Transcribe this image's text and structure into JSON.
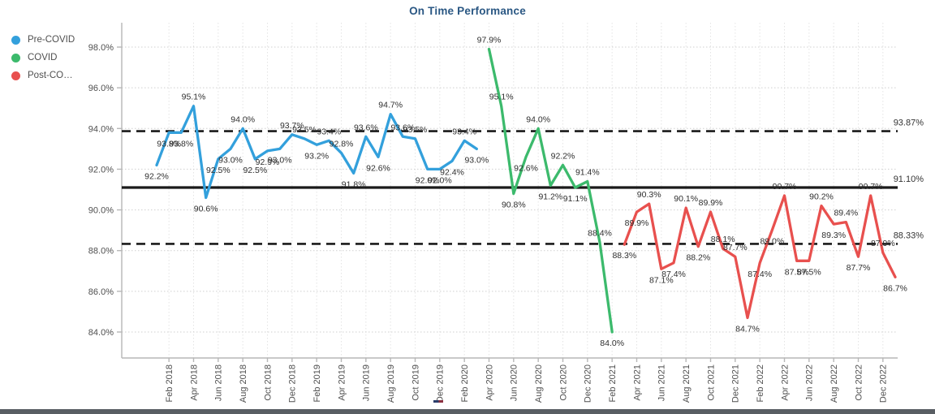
{
  "title": "On Time Performance",
  "legend": {
    "items": [
      {
        "label": "Pre-COVID",
        "color": "#33a0dc"
      },
      {
        "label": "COVID",
        "color": "#3cba6c"
      },
      {
        "label": "Post-CO…",
        "color": "#e8504e"
      }
    ]
  },
  "chart_data": {
    "type": "line",
    "title": "On Time Performance",
    "grid": true,
    "legend_position": "top-left",
    "y_axis": {
      "min": 84,
      "max": 98,
      "step": 2,
      "format": "percent",
      "tick_labels": [
        "98.0%",
        "96.0%",
        "94.0%",
        "92.0%",
        "90.0%",
        "88.0%",
        "86.0%",
        "84.0%"
      ]
    },
    "x_axis": {
      "total_months": 61,
      "span": "Jan 2018 - Jan 2023",
      "first_tick_index": 1,
      "tick_every": 2,
      "tick_labels": [
        "Feb 2018",
        "Apr 2018",
        "Jun 2018",
        "Aug 2018",
        "Oct 2018",
        "Dec 2018",
        "Feb 2019",
        "Apr 2019",
        "Jun 2019",
        "Aug 2019",
        "Oct 2019",
        "Dec 2019",
        "Feb 2020",
        "Apr 2020",
        "Jun 2020",
        "Aug 2020",
        "Oct 2020",
        "Dec 2020",
        "Feb 2021",
        "Apr 2021",
        "Jun 2021",
        "Aug 2021",
        "Oct 2021",
        "Dec 2021",
        "Feb 2022",
        "Apr 2022",
        "Jun 2022",
        "Aug 2022",
        "Oct 2022",
        "Dec 2022"
      ]
    },
    "series": [
      {
        "name": "Pre-COVID",
        "color": "#33a0dc",
        "start_month": "Jan 2018",
        "start_index": 0,
        "values": [
          92.2,
          93.8,
          93.8,
          95.1,
          90.6,
          92.5,
          93.0,
          94.0,
          92.5,
          92.9,
          93.0,
          93.7,
          93.5,
          93.2,
          93.4,
          92.8,
          91.8,
          93.6,
          92.6,
          94.7,
          93.6,
          93.5,
          92.0,
          92.0,
          92.4,
          93.4,
          93.0
        ]
      },
      {
        "name": "COVID",
        "color": "#3cba6c",
        "start_month": "Apr 2020",
        "start_index": 27,
        "values": [
          97.9,
          95.1,
          90.8,
          92.6,
          94.0,
          91.2,
          92.2,
          91.1,
          91.4,
          88.4,
          84.0
        ]
      },
      {
        "name": "Post-COVID",
        "color": "#e8504e",
        "start_month": "Mar 2021",
        "start_index": 38,
        "values": [
          88.3,
          89.9,
          90.3,
          87.1,
          87.4,
          90.1,
          88.2,
          89.9,
          88.1,
          87.7,
          84.7,
          87.4,
          89.0,
          90.7,
          87.5,
          87.5,
          90.2,
          89.3,
          89.4,
          87.7,
          90.7,
          87.9,
          86.7
        ]
      }
    ],
    "reference_lines": [
      {
        "label": "93.87%",
        "value": 93.87,
        "style": "dashed"
      },
      {
        "label": "91.10%",
        "value": 91.1,
        "style": "solid"
      },
      {
        "label": "88.33%",
        "value": 88.33,
        "style": "dashed"
      }
    ]
  }
}
